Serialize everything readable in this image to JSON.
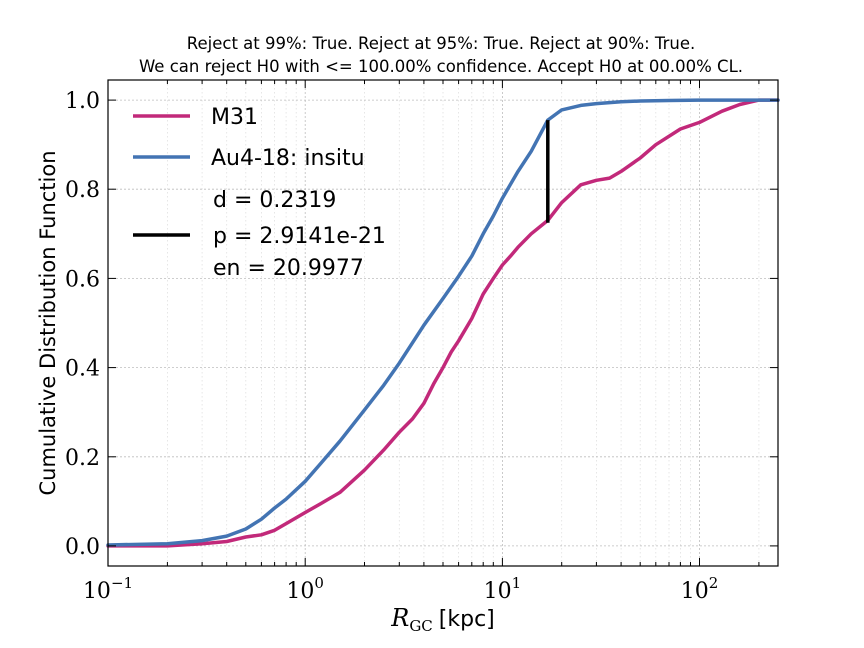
{
  "chart_data": {
    "type": "line",
    "title_line1": "Reject at 99%: True. Reject at 95%: True. Reject at 90%: True.",
    "title_line2": "We can reject H0 with <= 100.00% confidence. Accept H0 at 00.00% CL.",
    "xlabel_main": "R",
    "xlabel_sub": "GC",
    "xlabel_unit": "[kpc]",
    "ylabel": "Cumulative Distribution Function",
    "xscale": "log",
    "xlim": [
      0.1,
      250
    ],
    "ylim": [
      -0.045,
      1.045
    ],
    "grid": true,
    "legend_position": "top-left",
    "x_ticks": [
      {
        "value": 0.1,
        "base": "10",
        "exp": "−1"
      },
      {
        "value": 1,
        "base": "10",
        "exp": "0"
      },
      {
        "value": 10,
        "base": "10",
        "exp": "1"
      },
      {
        "value": 100,
        "base": "10",
        "exp": "2"
      }
    ],
    "y_ticks": [
      {
        "value": 0.0,
        "label": "0.0"
      },
      {
        "value": 0.2,
        "label": "0.2"
      },
      {
        "value": 0.4,
        "label": "0.4"
      },
      {
        "value": 0.6,
        "label": "0.6"
      },
      {
        "value": 0.8,
        "label": "0.8"
      },
      {
        "value": 1.0,
        "label": "1.0"
      }
    ],
    "series": [
      {
        "name": "M31",
        "color": "#c2297a",
        "x": [
          0.1,
          0.2,
          0.3,
          0.4,
          0.5,
          0.6,
          0.7,
          0.8,
          1.0,
          1.2,
          1.5,
          2.0,
          2.5,
          3.0,
          3.5,
          4.0,
          4.5,
          5.0,
          5.5,
          6.0,
          7.0,
          8.0,
          9.0,
          10.0,
          11.0,
          12.0,
          14.0,
          17.0,
          20.0,
          25.0,
          30.0,
          35.0,
          40.0,
          50.0,
          60.0,
          80.0,
          100.0,
          130.0,
          160.0,
          200.0,
          250.0
        ],
        "y": [
          0.0,
          0.0,
          0.005,
          0.01,
          0.02,
          0.025,
          0.035,
          0.05,
          0.075,
          0.095,
          0.12,
          0.17,
          0.215,
          0.255,
          0.285,
          0.32,
          0.365,
          0.4,
          0.435,
          0.46,
          0.51,
          0.565,
          0.6,
          0.63,
          0.65,
          0.67,
          0.7,
          0.73,
          0.77,
          0.81,
          0.82,
          0.825,
          0.84,
          0.87,
          0.9,
          0.935,
          0.95,
          0.975,
          0.99,
          1.0,
          1.0
        ]
      },
      {
        "name": "Au4-18: insitu",
        "color": "#4374b3",
        "x": [
          0.1,
          0.2,
          0.3,
          0.4,
          0.5,
          0.6,
          0.7,
          0.8,
          1.0,
          1.2,
          1.5,
          2.0,
          2.5,
          3.0,
          4.0,
          5.0,
          6.0,
          7.0,
          8.0,
          9.0,
          10.0,
          12.0,
          14.0,
          17.0,
          20.0,
          25.0,
          30.0,
          40.0,
          50.0,
          70.0,
          100.0,
          150.0,
          250.0
        ],
        "y": [
          0.002,
          0.005,
          0.012,
          0.022,
          0.038,
          0.06,
          0.085,
          0.105,
          0.145,
          0.185,
          0.235,
          0.305,
          0.36,
          0.41,
          0.495,
          0.555,
          0.605,
          0.65,
          0.7,
          0.74,
          0.78,
          0.84,
          0.885,
          0.955,
          0.978,
          0.988,
          0.992,
          0.996,
          0.998,
          0.999,
          1.0,
          1.0,
          1.0
        ]
      }
    ],
    "ks_line": {
      "x": 17.0,
      "y_low": 0.725,
      "y_high": 0.955,
      "color": "#000000"
    },
    "stats": {
      "d": "d = 0.2319",
      "p": "p = 2.9141e-21",
      "en": "en = 20.9977"
    }
  }
}
